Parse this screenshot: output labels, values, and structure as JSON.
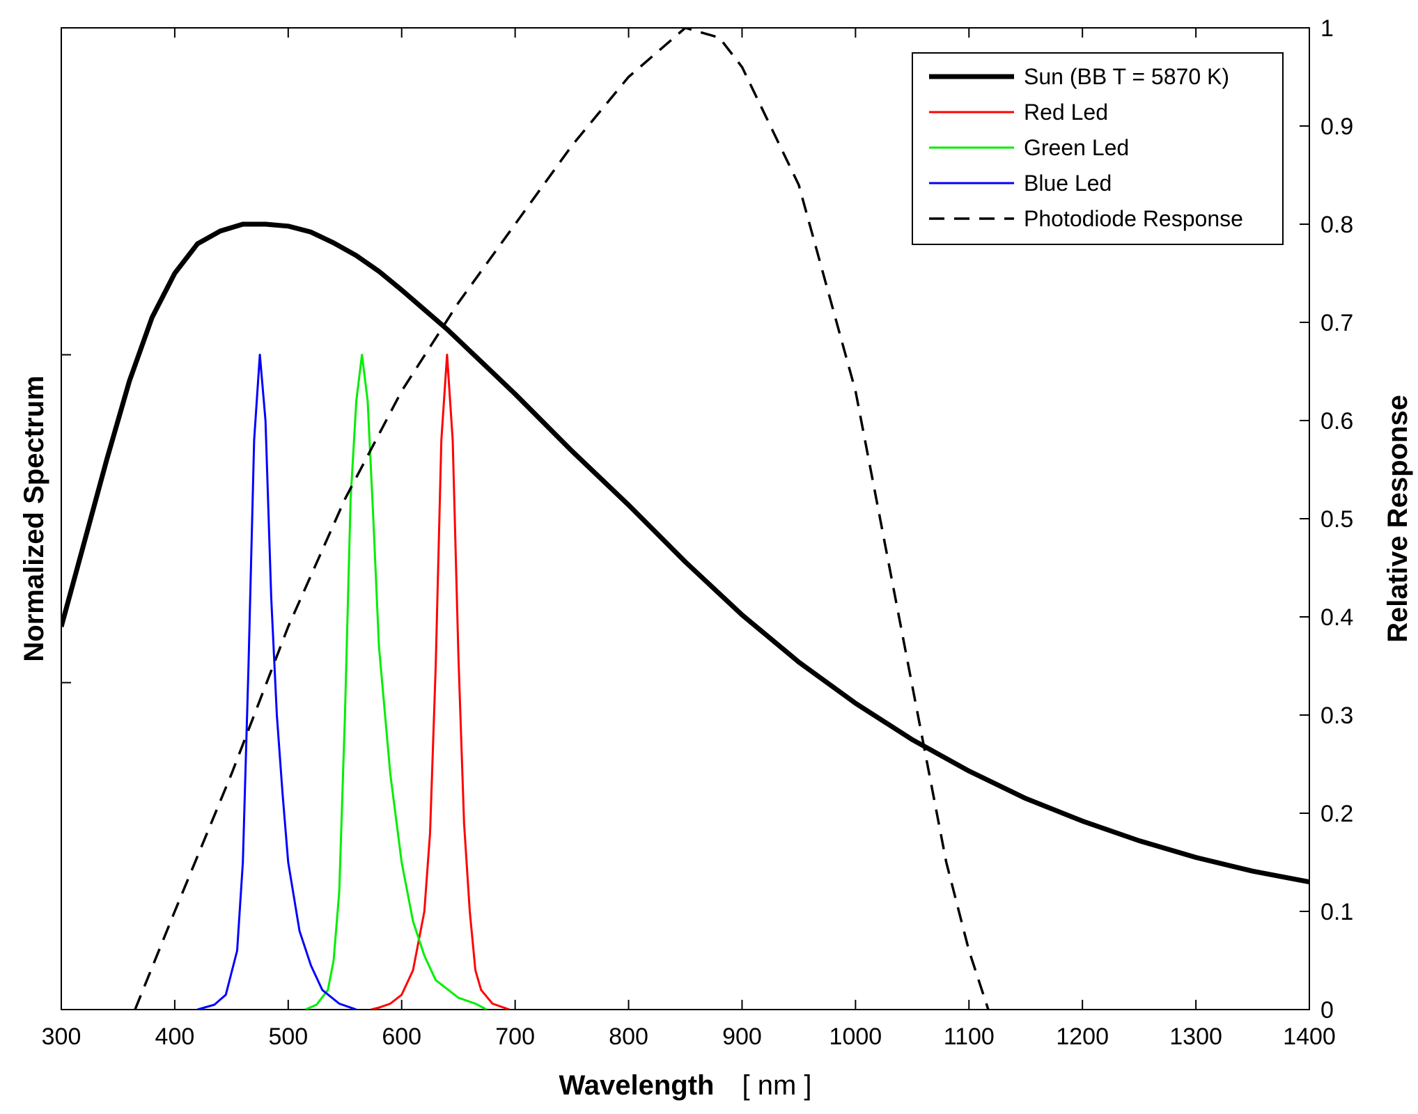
{
  "chart_data": {
    "type": "line",
    "title": "",
    "xlabel": "Wavelength",
    "xlabel_unit": "[ nm ]",
    "ylabel_left": "Normalized Spectrum",
    "ylabel_right": "Relative Response",
    "xlim": [
      300,
      1400
    ],
    "ylim_right": [
      0,
      1
    ],
    "x_ticks": [
      300,
      400,
      500,
      600,
      700,
      800,
      900,
      1000,
      1100,
      1200,
      1300,
      1400
    ],
    "y_right_ticks": [
      0,
      0.1,
      0.2,
      0.3,
      0.4,
      0.5,
      0.6,
      0.7,
      0.8,
      0.9,
      1
    ],
    "y_right_tick_labels": [
      "0",
      "0.1",
      "0.2",
      "0.3",
      "0.4",
      "0.5",
      "0.6",
      "0.7",
      "0.8",
      "0.9",
      "1"
    ],
    "y_left_ticks": [
      0.333,
      0.667
    ],
    "legend_position": "top-right",
    "series": [
      {
        "name": "Sun (BB T = 5870 K)",
        "color": "#000000",
        "style": "solid",
        "width": "thick",
        "x": [
          300,
          320,
          340,
          360,
          380,
          400,
          420,
          440,
          460,
          480,
          500,
          520,
          540,
          560,
          580,
          600,
          620,
          640,
          660,
          680,
          700,
          750,
          800,
          850,
          900,
          950,
          1000,
          1050,
          1100,
          1150,
          1200,
          1250,
          1300,
          1350,
          1400
        ],
        "y": [
          0.39,
          0.475,
          0.56,
          0.64,
          0.705,
          0.75,
          0.78,
          0.793,
          0.8,
          0.8,
          0.798,
          0.792,
          0.781,
          0.768,
          0.752,
          0.733,
          0.713,
          0.693,
          0.671,
          0.649,
          0.627,
          0.569,
          0.514,
          0.456,
          0.402,
          0.354,
          0.312,
          0.275,
          0.243,
          0.215,
          0.192,
          0.172,
          0.155,
          0.141,
          0.13
        ]
      },
      {
        "name": "Red Led",
        "color": "#ff0000",
        "style": "solid",
        "width": "thin",
        "x": [
          573,
          580,
          590,
          600,
          610,
          620,
          625,
          630,
          635,
          640,
          645,
          650,
          655,
          660,
          665,
          670,
          680,
          695
        ],
        "y": [
          0.0,
          0.002,
          0.006,
          0.015,
          0.04,
          0.1,
          0.18,
          0.35,
          0.58,
          0.667,
          0.58,
          0.36,
          0.19,
          0.1,
          0.04,
          0.02,
          0.006,
          0.0
        ]
      },
      {
        "name": "Green Led",
        "color": "#00ee00",
        "style": "solid",
        "width": "thin",
        "x": [
          515,
          525,
          535,
          540,
          545,
          550,
          555,
          560,
          565,
          570,
          575,
          580,
          590,
          600,
          610,
          620,
          630,
          650,
          665,
          675
        ],
        "y": [
          0.0,
          0.005,
          0.02,
          0.05,
          0.12,
          0.3,
          0.52,
          0.62,
          0.667,
          0.62,
          0.5,
          0.37,
          0.24,
          0.15,
          0.09,
          0.055,
          0.03,
          0.012,
          0.006,
          0.0
        ]
      },
      {
        "name": "Blue Led",
        "color": "#0000ff",
        "style": "solid",
        "width": "thin",
        "x": [
          420,
          435,
          445,
          455,
          460,
          465,
          470,
          475,
          480,
          485,
          490,
          495,
          500,
          510,
          520,
          530,
          545,
          560
        ],
        "y": [
          0.0,
          0.005,
          0.015,
          0.06,
          0.15,
          0.35,
          0.58,
          0.667,
          0.6,
          0.42,
          0.3,
          0.22,
          0.15,
          0.08,
          0.045,
          0.02,
          0.006,
          0.0
        ]
      },
      {
        "name": "Photodiode Response",
        "color": "#000000",
        "style": "dashed",
        "width": "medium",
        "x": [
          365,
          400,
          450,
          500,
          550,
          600,
          650,
          700,
          750,
          800,
          850,
          880,
          900,
          950,
          1000,
          1050,
          1080,
          1100,
          1117
        ],
        "y": [
          0.0,
          0.1,
          0.24,
          0.39,
          0.52,
          0.63,
          0.72,
          0.8,
          0.88,
          0.95,
          1.0,
          0.99,
          0.96,
          0.84,
          0.63,
          0.33,
          0.15,
          0.06,
          0.0
        ]
      }
    ]
  }
}
